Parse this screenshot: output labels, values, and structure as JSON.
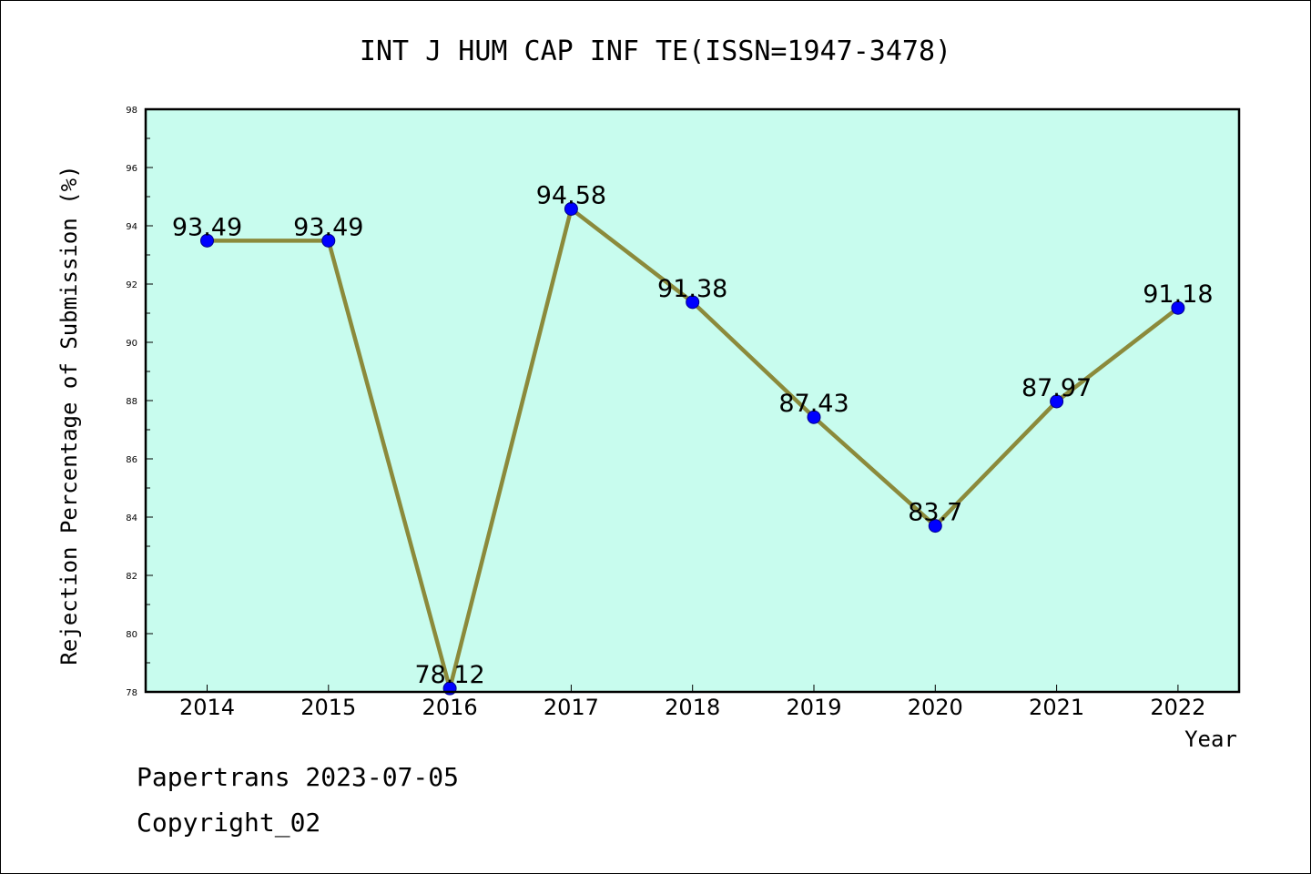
{
  "chart_data": {
    "type": "line",
    "title": "INT J HUM CAP INF TE(ISSN=1947-3478)",
    "xlabel": "Year",
    "ylabel": "Rejection Percentage of Submission (%)",
    "categories": [
      "2014",
      "2015",
      "2016",
      "2017",
      "2018",
      "2019",
      "2020",
      "2021",
      "2022"
    ],
    "values": [
      93.49,
      93.49,
      78.12,
      94.58,
      91.38,
      87.43,
      83.7,
      87.97,
      91.18
    ],
    "data_labels": [
      "93.49",
      "93.49",
      "78.12",
      "94.58",
      "91.38",
      "87.43",
      "83.7",
      "87.97",
      "91.18"
    ],
    "ylim": [
      78,
      98
    ],
    "yticks": [
      78,
      80,
      82,
      84,
      86,
      88,
      90,
      92,
      94,
      96,
      98
    ],
    "grid": false,
    "colors": {
      "plot_background": "#c8fcee",
      "line": "#8b8a3b",
      "marker": "#0000ff",
      "axis": "#000000"
    }
  },
  "footer": {
    "line1": "Papertrans 2023-07-05",
    "line2": "Copyright_02"
  }
}
